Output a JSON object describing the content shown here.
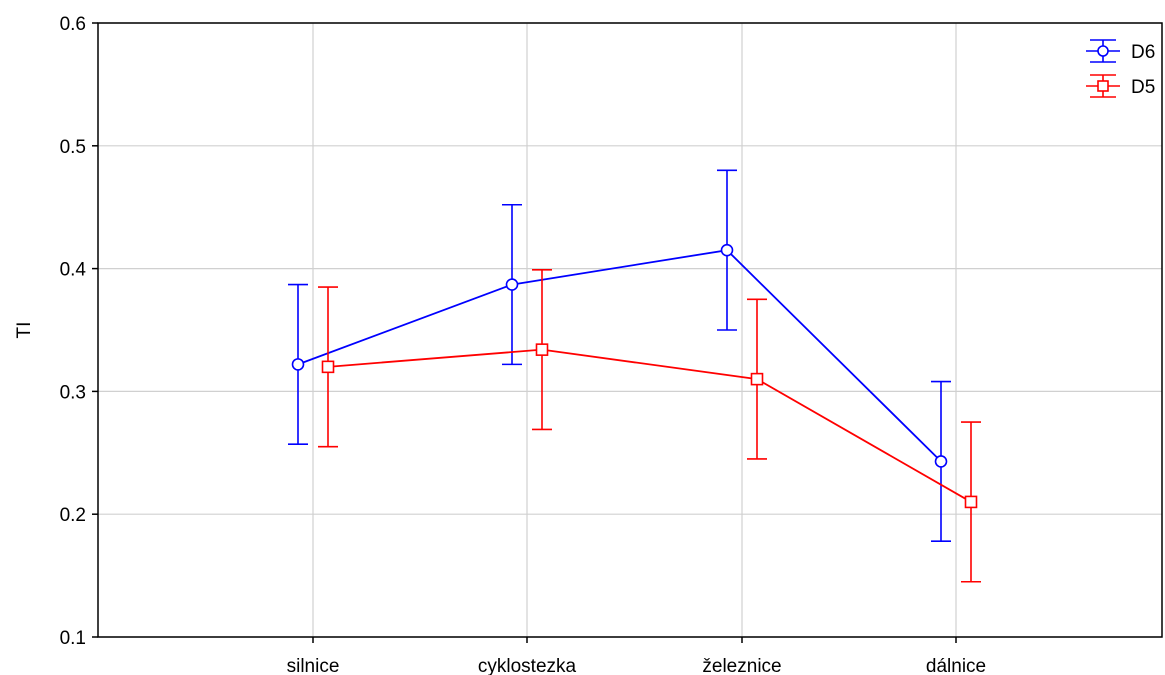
{
  "chart_data": {
    "type": "line",
    "title": "",
    "xlabel": "",
    "ylabel": "TI",
    "ylim": [
      0.1,
      0.6
    ],
    "y_ticks": [
      "0.1",
      "0.2",
      "0.3",
      "0.4",
      "0.5",
      "0.6"
    ],
    "categories": [
      "silnice",
      "cyklostezka",
      "železnice",
      "dálnice"
    ],
    "grid": true,
    "legend_position": "top-right",
    "error_bars": true,
    "series": [
      {
        "name": "D6",
        "color": "#0000ff",
        "marker": "circle",
        "values": [
          0.322,
          0.387,
          0.415,
          0.243
        ],
        "lower": [
          0.257,
          0.322,
          0.35,
          0.178
        ],
        "upper": [
          0.387,
          0.452,
          0.48,
          0.308
        ]
      },
      {
        "name": "D5",
        "color": "#ff0000",
        "marker": "square",
        "values": [
          0.32,
          0.334,
          0.31,
          0.21
        ],
        "lower": [
          0.255,
          0.269,
          0.245,
          0.145
        ],
        "upper": [
          0.385,
          0.399,
          0.375,
          0.275
        ]
      }
    ]
  }
}
